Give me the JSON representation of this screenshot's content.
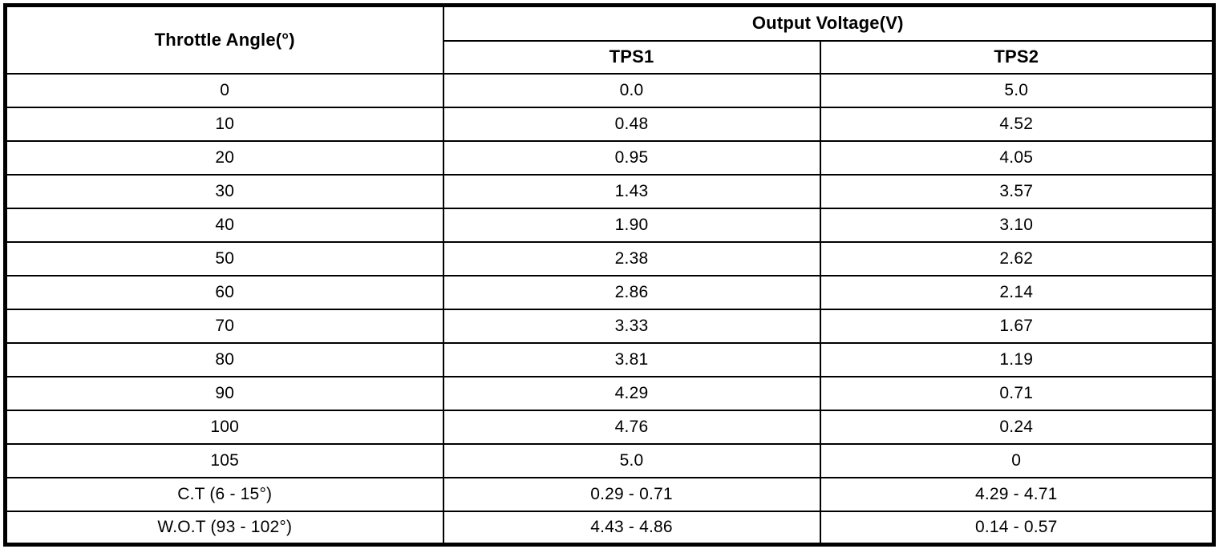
{
  "table": {
    "title_col_header": "Throttle Angle(°)",
    "group_header": "Output Voltage(V)",
    "sub_headers": [
      "TPS1",
      "TPS2"
    ],
    "border_color": "#000000",
    "background_color": "#ffffff",
    "rows": [
      {
        "angle": "0",
        "tps1": "0.0",
        "tps2": "5.0"
      },
      {
        "angle": "10",
        "tps1": "0.48",
        "tps2": "4.52"
      },
      {
        "angle": "20",
        "tps1": "0.95",
        "tps2": "4.05"
      },
      {
        "angle": "30",
        "tps1": "1.43",
        "tps2": "3.57"
      },
      {
        "angle": "40",
        "tps1": "1.90",
        "tps2": "3.10"
      },
      {
        "angle": "50",
        "tps1": "2.38",
        "tps2": "2.62"
      },
      {
        "angle": "60",
        "tps1": "2.86",
        "tps2": "2.14"
      },
      {
        "angle": "70",
        "tps1": "3.33",
        "tps2": "1.67"
      },
      {
        "angle": "80",
        "tps1": "3.81",
        "tps2": "1.19"
      },
      {
        "angle": "90",
        "tps1": "4.29",
        "tps2": "0.71"
      },
      {
        "angle": "100",
        "tps1": "4.76",
        "tps2": "0.24"
      },
      {
        "angle": "105",
        "tps1": "5.0",
        "tps2": "0"
      },
      {
        "angle": "C.T (6 - 15°)",
        "tps1": "0.29 - 0.71",
        "tps2": "4.29 - 4.71"
      },
      {
        "angle": "W.O.T (93 - 102°)",
        "tps1": "4.43 - 4.86",
        "tps2": "0.14 - 0.57"
      }
    ]
  }
}
